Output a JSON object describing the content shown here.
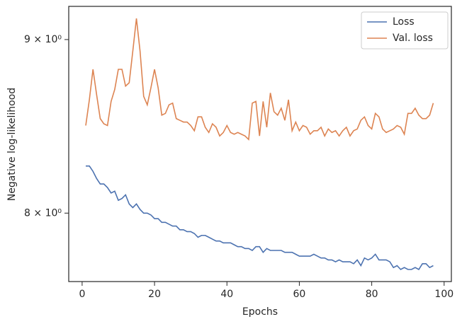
{
  "chart_data": {
    "type": "line",
    "xlabel": "Epochs",
    "ylabel": "Negative log-likelihood",
    "x": [
      1,
      2,
      3,
      4,
      5,
      6,
      7,
      8,
      9,
      10,
      11,
      12,
      13,
      14,
      15,
      16,
      17,
      18,
      19,
      20,
      21,
      22,
      23,
      24,
      25,
      26,
      27,
      28,
      29,
      30,
      31,
      32,
      33,
      34,
      35,
      36,
      37,
      38,
      39,
      40,
      41,
      42,
      43,
      44,
      45,
      46,
      47,
      48,
      49,
      50,
      51,
      52,
      53,
      54,
      55,
      56,
      57,
      58,
      59,
      60,
      61,
      62,
      63,
      64,
      65,
      66,
      67,
      68,
      69,
      70,
      71,
      72,
      73,
      74,
      75,
      76,
      77,
      78,
      79,
      80,
      81,
      82,
      83,
      84,
      85,
      86,
      87,
      88,
      89,
      90,
      91,
      92,
      93,
      94,
      95,
      96,
      97
    ],
    "series": [
      {
        "name": "Loss",
        "color": "#4c72b0",
        "values": [
          8.26,
          8.26,
          8.23,
          8.19,
          8.16,
          8.16,
          8.14,
          8.11,
          8.12,
          8.07,
          8.08,
          8.1,
          8.05,
          8.03,
          8.05,
          8.02,
          8.0,
          8.0,
          7.99,
          7.97,
          7.97,
          7.95,
          7.95,
          7.94,
          7.93,
          7.93,
          7.91,
          7.91,
          7.9,
          7.9,
          7.89,
          7.87,
          7.88,
          7.88,
          7.87,
          7.86,
          7.85,
          7.85,
          7.84,
          7.84,
          7.84,
          7.83,
          7.82,
          7.82,
          7.81,
          7.81,
          7.8,
          7.82,
          7.82,
          7.79,
          7.81,
          7.8,
          7.8,
          7.8,
          7.8,
          7.79,
          7.79,
          7.79,
          7.78,
          7.77,
          7.77,
          7.77,
          7.77,
          7.78,
          7.77,
          7.76,
          7.76,
          7.75,
          7.75,
          7.74,
          7.75,
          7.74,
          7.74,
          7.74,
          7.73,
          7.75,
          7.72,
          7.76,
          7.75,
          7.76,
          7.78,
          7.75,
          7.75,
          7.75,
          7.74,
          7.71,
          7.72,
          7.7,
          7.71,
          7.7,
          7.7,
          7.71,
          7.7,
          7.73,
          7.73,
          7.71,
          7.72
        ]
      },
      {
        "name": "Val. loss",
        "color": "#dd8452",
        "values": [
          8.49,
          8.64,
          8.82,
          8.67,
          8.53,
          8.5,
          8.49,
          8.63,
          8.7,
          8.82,
          8.82,
          8.72,
          8.74,
          8.93,
          9.13,
          8.93,
          8.66,
          8.61,
          8.71,
          8.82,
          8.71,
          8.55,
          8.56,
          8.61,
          8.62,
          8.53,
          8.52,
          8.51,
          8.51,
          8.49,
          8.46,
          8.54,
          8.54,
          8.48,
          8.45,
          8.5,
          8.48,
          8.43,
          8.45,
          8.49,
          8.45,
          8.44,
          8.45,
          8.44,
          8.43,
          8.41,
          8.62,
          8.63,
          8.43,
          8.63,
          8.48,
          8.68,
          8.57,
          8.55,
          8.59,
          8.52,
          8.64,
          8.46,
          8.51,
          8.46,
          8.49,
          8.48,
          8.44,
          8.46,
          8.46,
          8.48,
          8.43,
          8.47,
          8.45,
          8.46,
          8.43,
          8.46,
          8.48,
          8.43,
          8.46,
          8.47,
          8.52,
          8.54,
          8.49,
          8.47,
          8.56,
          8.54,
          8.47,
          8.45,
          8.46,
          8.47,
          8.49,
          8.48,
          8.44,
          8.56,
          8.56,
          8.59,
          8.55,
          8.53,
          8.53,
          8.55,
          8.62
        ]
      }
    ],
    "xlim": [
      -3.7,
      102
    ],
    "xticks": [
      0,
      20,
      40,
      60,
      80,
      100
    ],
    "ylim": [
      7.637,
      9.205
    ],
    "yscale": "log",
    "yticks": [
      {
        "value": 8,
        "label": "8 × 10⁰"
      },
      {
        "value": 9,
        "label": "9 × 10⁰"
      }
    ],
    "legend": "upper right"
  }
}
